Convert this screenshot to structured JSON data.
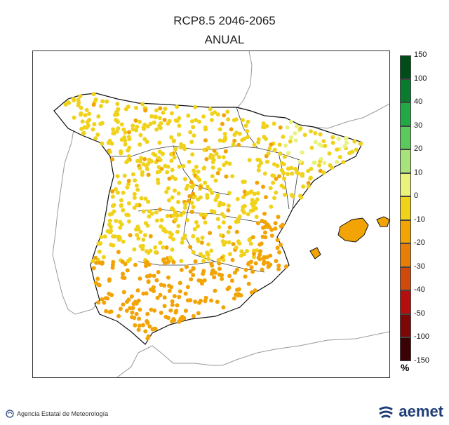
{
  "header": {
    "title": "RCP8.5   2046-2065",
    "subtitle": "ANUAL"
  },
  "legend": {
    "unit": "%",
    "ticks": [
      "150",
      "100",
      "40",
      "30",
      "20",
      "10",
      "0",
      "-10",
      "-20",
      "-30",
      "-40",
      "-50",
      "-100",
      "-150"
    ],
    "colors": [
      "#004d1a",
      "#0a7a2e",
      "#22a845",
      "#5cc95c",
      "#a7e27a",
      "#e9f27a",
      "#f0d21a",
      "#f2a305",
      "#e87d08",
      "#d04a0b",
      "#b50e0e",
      "#7d0606",
      "#3a0202"
    ]
  },
  "map": {
    "region": "Iberian Peninsula and Balearic Islands",
    "dot_colors_legend_classes": [
      "0 to 10",
      "-10 to 0",
      "-20 to -10"
    ]
  },
  "footer": {
    "agency": "Agencia Estatal de Meteorología",
    "brand": "aemet",
    "agency_icon": "aemet-small-logo-icon",
    "brand_icon": "aemet-swirl-logo-icon"
  }
}
